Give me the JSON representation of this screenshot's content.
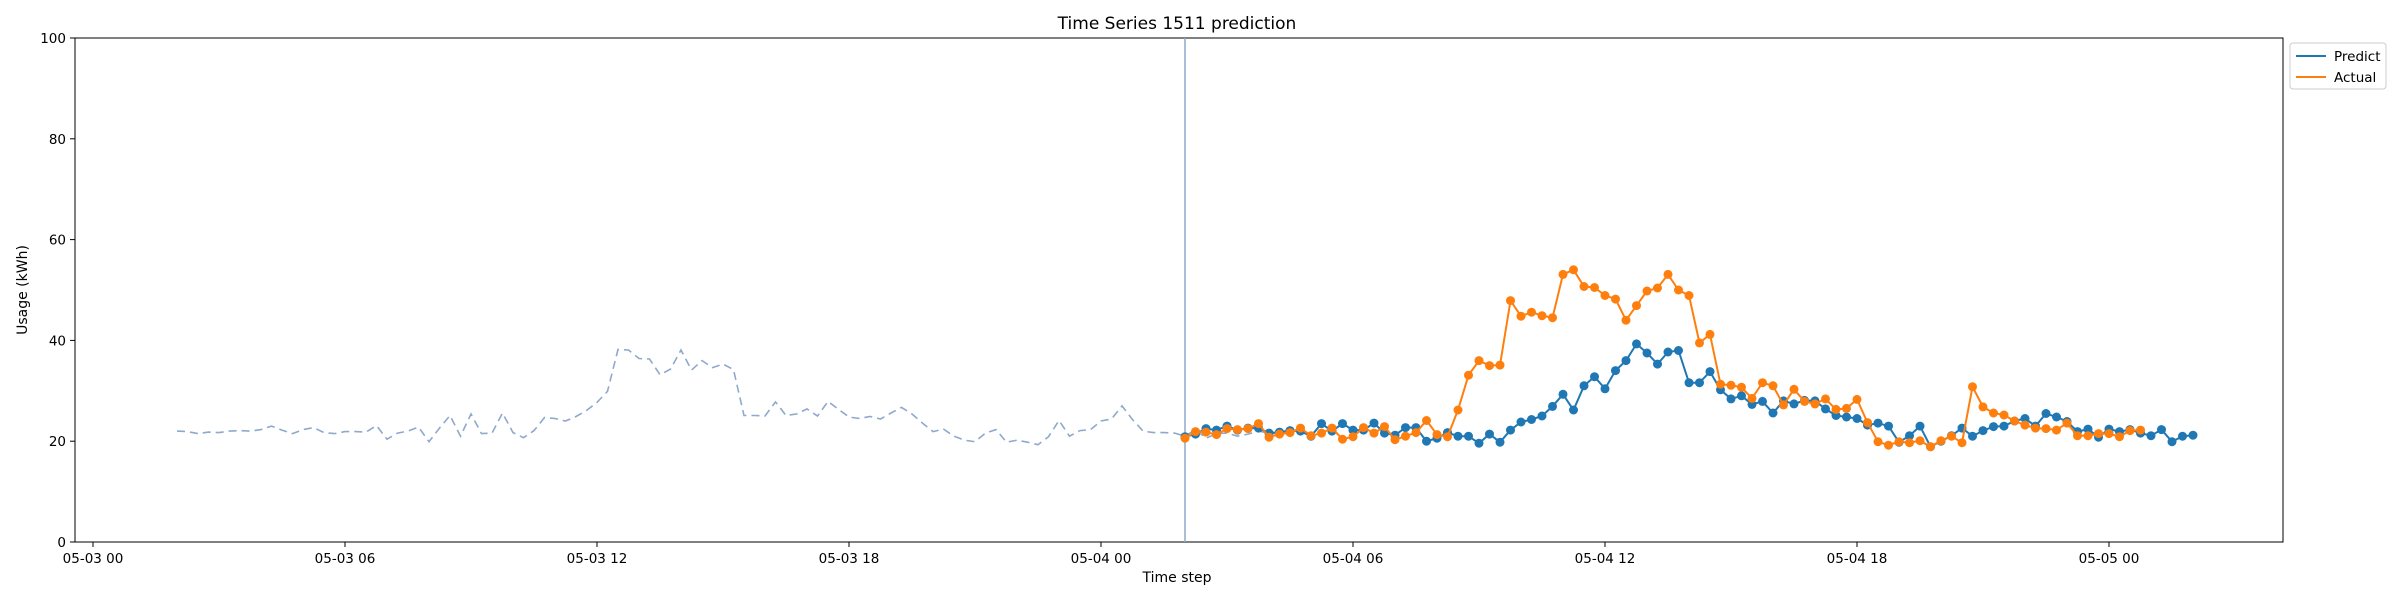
{
  "chart_data": {
    "type": "line",
    "title": "Time Series 1511 prediction",
    "xlabel": "Time step",
    "ylabel": "Usage (kWh)",
    "ylim": [
      0,
      100
    ],
    "yticks": [
      0,
      20,
      40,
      60,
      80,
      100
    ],
    "xlim_hours_label": "05-03 00 to ~05-05 06",
    "xticks": [
      "05-03 00",
      "05-03 06",
      "05-03 12",
      "05-03 18",
      "05-04 00",
      "05-04 06",
      "05-04 12",
      "05-04 18",
      "05-05 00"
    ],
    "x_start": "2000-05-03T02:00",
    "x_step_minutes": 15,
    "forecast_start": "2000-05-04T02:00",
    "grid": false,
    "legend_position": "outside top-right",
    "history": {
      "style": "dashed",
      "color": "#8fa9cc",
      "values": [
        22.0,
        21.9,
        21.5,
        21.8,
        21.7,
        22.0,
        22.1,
        22.0,
        22.3,
        23.0,
        22.2,
        21.5,
        22.3,
        22.7,
        21.7,
        21.5,
        21.9,
        21.9,
        21.8,
        23.1,
        20.4,
        21.6,
        22.0,
        22.8,
        19.9,
        22.6,
        25.1,
        21.0,
        25.4,
        21.5,
        21.6,
        25.6,
        21.7,
        20.7,
        22.1,
        24.7,
        24.5,
        24.0,
        24.9,
        26.1,
        27.7,
        29.9,
        38.2,
        38.1,
        36.4,
        36.3,
        33.2,
        34.3,
        38.1,
        34.1,
        36.0,
        34.6,
        35.3,
        34.2,
        25.1,
        25.1,
        25.0,
        27.8,
        25.1,
        25.4,
        26.4,
        25.0,
        27.9,
        26.3,
        24.8,
        24.5,
        24.9,
        24.4,
        25.6,
        26.7,
        25.4,
        23.6,
        21.9,
        22.4,
        21.0,
        20.2,
        19.9,
        21.6,
        22.3,
        19.8,
        20.2,
        19.8,
        19.3,
        20.9,
        24.1,
        21.0,
        22.1,
        22.3,
        24.0,
        24.4,
        27.0,
        24.3,
        22.0,
        21.7,
        21.7,
        21.6,
        21.0,
        22.3,
        20.6,
        21.5,
        21.6,
        21.0,
        21.4,
        22.0,
        21.6,
        21.5
      ]
    },
    "series": [
      {
        "name": "Predict",
        "color": "#1f77b4",
        "values": [
          20.9,
          21.4,
          22.5,
          22.2,
          23.0,
          22.2,
          22.6,
          22.6,
          21.6,
          21.8,
          22.1,
          22.0,
          21.0,
          23.5,
          22.0,
          23.5,
          22.2,
          22.2,
          23.6,
          21.6,
          21.2,
          22.7,
          22.7,
          20.0,
          20.6,
          21.7,
          21.0,
          21.0,
          19.6,
          21.4,
          19.8,
          22.2,
          23.8,
          24.3,
          25.0,
          26.9,
          29.3,
          26.2,
          31.0,
          32.8,
          30.4,
          34.0,
          36.0,
          39.3,
          37.5,
          35.3,
          37.7,
          38.0,
          31.6,
          31.6,
          33.8,
          30.2,
          28.4,
          29.0,
          27.3,
          27.9,
          25.6,
          28.0,
          27.4,
          28.1,
          28.0,
          26.4,
          25.1,
          24.8,
          24.5,
          23.2,
          23.6,
          23.0,
          19.8,
          21.1,
          23.0,
          18.9,
          20.0,
          21.1,
          22.6,
          21.0,
          22.1,
          22.9,
          23.0,
          24.0,
          24.5,
          23.0,
          25.5,
          24.8,
          23.9,
          21.9,
          22.4,
          20.8,
          22.4,
          21.9,
          22.3,
          21.6,
          21.1,
          22.3,
          19.9,
          21.0,
          21.2
        ]
      },
      {
        "name": "Actual",
        "color": "#ff7f0e",
        "values": [
          20.6,
          21.9,
          21.8,
          21.3,
          22.5,
          22.3,
          22.5,
          23.5,
          20.8,
          21.4,
          21.7,
          22.6,
          21.1,
          21.6,
          22.6,
          20.4,
          20.9,
          22.7,
          21.6,
          22.9,
          20.3,
          21.0,
          21.7,
          24.1,
          21.3,
          20.9,
          26.2,
          33.1,
          36.0,
          35.0,
          35.1,
          47.9,
          44.8,
          45.6,
          44.9,
          44.5,
          53.1,
          54.0,
          50.7,
          50.5,
          48.9,
          48.2,
          44.0,
          46.9,
          49.8,
          50.4,
          53.1,
          50.0,
          48.9,
          39.5,
          41.2,
          31.3,
          31.1,
          30.7,
          28.5,
          31.6,
          31.0,
          27.2,
          30.3,
          27.9,
          27.4,
          28.4,
          26.3,
          26.5,
          28.3,
          23.7,
          19.9,
          19.2,
          19.9,
          19.7,
          20.1,
          18.9,
          20.1,
          21.0,
          19.7,
          30.8,
          26.8,
          25.6,
          25.2,
          24.0,
          23.2,
          22.6,
          22.5,
          22.2,
          23.6,
          21.1,
          21.1,
          21.5,
          21.5,
          20.9,
          22.1,
          22.2
        ]
      }
    ]
  }
}
